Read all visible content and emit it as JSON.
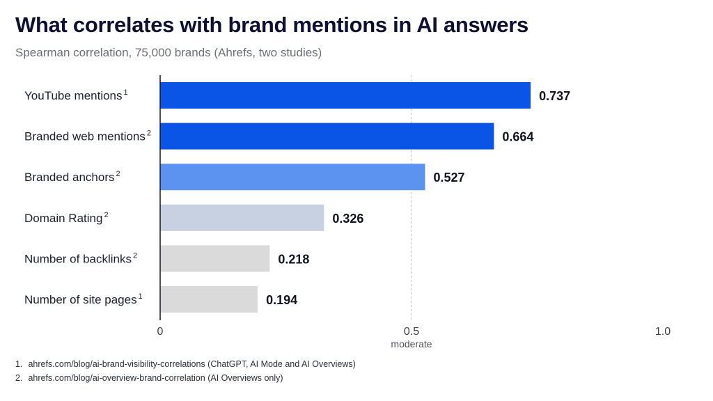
{
  "title": "What correlates with brand mentions in AI answers",
  "subtitle": "Spearman correlation, 75,000 brands (Ahrefs, two studies)",
  "chart_data": {
    "type": "bar",
    "orientation": "horizontal",
    "categories": [
      "YouTube mentions",
      "Branded web mentions",
      "Branded anchors",
      "Domain Rating",
      "Number of backlinks",
      "Number of site pages"
    ],
    "footnote_refs": [
      "1",
      "2",
      "2",
      "2",
      "2",
      "1"
    ],
    "values": [
      0.737,
      0.664,
      0.527,
      0.326,
      0.218,
      0.194
    ],
    "value_labels": [
      "0.737",
      "0.664",
      "0.527",
      "0.326",
      "0.218",
      "0.194"
    ],
    "bar_colors": [
      "#0a55e6",
      "#0a55e6",
      "#5d93f0",
      "#c8d1e2",
      "#dadadb",
      "#dadadb"
    ],
    "xlim": [
      0,
      1.0
    ],
    "x_ticks": [
      {
        "value": 0,
        "label": "0"
      },
      {
        "value": 0.5,
        "label": "0.5"
      },
      {
        "value": 1.0,
        "label": "1.0"
      }
    ],
    "reference_line": {
      "value": 0.5,
      "label": "moderate",
      "style": "dashed"
    },
    "grid": false,
    "legend": "none"
  },
  "footnotes": [
    {
      "marker": "1.",
      "text": "ahrefs.com/blog/ai-brand-visibility-correlations (ChatGPT, AI Mode and AI Overviews)"
    },
    {
      "marker": "2.",
      "text": "ahrefs.com/blog/ai-overview-brand-correlation (AI Overviews only)"
    }
  ]
}
